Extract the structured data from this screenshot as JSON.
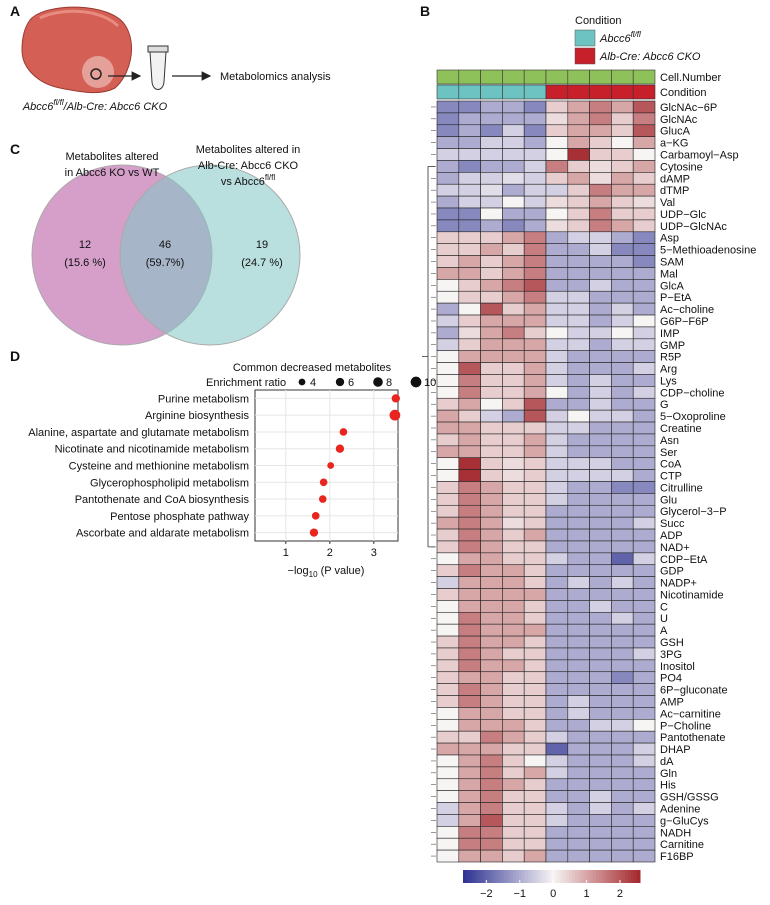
{
  "panel_labels": [
    "A",
    "B",
    "C",
    "D"
  ],
  "panel_a": {
    "step": "Metabolomics analysis",
    "caption": [
      "Abcc6",
      "fl/fl",
      "/Alb-Cre: Abcc6 CKO"
    ]
  },
  "chart_data": [
    {
      "type": "heatmap",
      "legend_title": "Condition",
      "conditions": [
        {
          "name": "Abcc6",
          "superscript": "fl/fl",
          "color": "#6cc3c1"
        },
        {
          "name": "Alb-Cre: Abcc6 CKO",
          "color": "#c8202a"
        }
      ],
      "annotation_rows": [
        "Cell.Number",
        "Condition"
      ],
      "cell_number_color": "#8fc15a",
      "column_condition": [
        0,
        0,
        0,
        0,
        0,
        1,
        1,
        1,
        1,
        1
      ],
      "rows": [
        "GlcNAc−6P",
        "GlcNAc",
        "GlucA",
        "a−KG",
        "Carbamoyl−Asp",
        "Cytosine",
        "dAMP",
        "dTMP",
        "Val",
        "UDP−Glc",
        "UDP−GlcNAc",
        "Asp",
        "5−Methioadenosine",
        "SAM",
        "Mal",
        "GlcA",
        "P−EtA",
        "Ac−choline",
        "G6P−F6P",
        "IMP",
        "GMP",
        "R5P",
        "Arg",
        "Lys",
        "CDP−choline",
        "G",
        "5−Oxoproline",
        "Creatine",
        "Asn",
        "Ser",
        "CoA",
        "CTP",
        "Citrulline",
        "Glu",
        "Glycerol−3−P",
        "Succ",
        "ADP",
        "NAD+",
        "CDP−EtA",
        "GDP",
        "NADP+",
        "Nicotinamide",
        "C",
        "U",
        "A",
        "GSH",
        "3PG",
        "Inositol",
        "PO4",
        "6P−gluconate",
        "AMP",
        "Ac−carnitine",
        "P−Choline",
        "Pantothenate",
        "DHAP",
        "dA",
        "Gln",
        "His",
        "GSH/GSSG",
        "Adenine",
        "g−GluCys",
        "NADH",
        "Carnitine",
        "F16BP"
      ],
      "row_label_colors": [
        "#c0272d",
        "#c0272d",
        "#c0272d",
        "#111",
        "#111",
        "#c0272d",
        "#111",
        "#c0272d",
        "#111",
        "#111",
        "#111",
        "#c0272d",
        "#c0272d",
        "#c0272d",
        "#c0272d",
        "#c0272d",
        "#c0272d",
        "#c0272d",
        "#111",
        "#111",
        "#c0272d",
        "#c0272d",
        "#c0272d",
        "#c0272d",
        "#111",
        "#111",
        "#c0272d",
        "#c0272d",
        "#c0272d",
        "#c0272d",
        "#c0272d",
        "#111",
        "#c0272d",
        "#111",
        "#c0272d",
        "#c0272d",
        "#c0272d",
        "#c0272d",
        "#c0272d",
        "#c0272d",
        "#c0272d",
        "#c0272d",
        "#111",
        "#c0272d",
        "#c0272d",
        "#c0272d",
        "#c0272d",
        "#c0272d",
        "#c0272d",
        "#c0272d",
        "#c0272d",
        "#c0272d",
        "#111",
        "#c0272d",
        "#111",
        "#c0272d",
        "#c0272d",
        "#c0272d",
        "#c0272d",
        "#111",
        "#111",
        "#c0272d",
        "#c0272d",
        "#111"
      ],
      "values": [
        [
          -1.5,
          -1.5,
          -1,
          -1,
          -1.5,
          0.5,
          1,
          1.5,
          1,
          2
        ],
        [
          -1.5,
          -1,
          -1,
          -1,
          -1,
          0.3,
          1,
          1.5,
          0.5,
          1.5
        ],
        [
          -1.5,
          -1,
          -1.5,
          -0.5,
          -1.5,
          0.5,
          1,
          1,
          0.5,
          2
        ],
        [
          -1,
          -1,
          -0.5,
          -0.5,
          -1,
          0,
          1,
          0.5,
          0,
          1
        ],
        [
          -0.5,
          -0.5,
          -0.5,
          -0.5,
          -0.5,
          0,
          2.5,
          0.5,
          0.5,
          0
        ],
        [
          -1,
          -1.5,
          -1,
          -1,
          -0.5,
          1.5,
          0.5,
          0.3,
          0.5,
          1
        ],
        [
          -1,
          -0.5,
          -0.5,
          -0.3,
          -0.5,
          0.5,
          1,
          0.3,
          1,
          0.5
        ],
        [
          -0.5,
          -0.5,
          -0.3,
          -1,
          -0.5,
          -0.5,
          0.5,
          1.5,
          1,
          1
        ],
        [
          -1,
          -0.5,
          -0.5,
          0,
          -0.5,
          0.3,
          0.5,
          1,
          0.5,
          0.3
        ],
        [
          -1.5,
          -1.5,
          0,
          -1,
          -1,
          0,
          0.5,
          1.5,
          0.5,
          0.5
        ],
        [
          -1.5,
          -1.5,
          -1,
          -1.5,
          -1,
          0.3,
          0.5,
          1.5,
          1,
          0.5
        ],
        [
          0.5,
          0.5,
          0.5,
          1,
          1.5,
          -1,
          -0.5,
          -0.5,
          -1,
          -1.5
        ],
        [
          0.5,
          0.5,
          1,
          0.5,
          1.5,
          -1,
          -1,
          -0.5,
          -1.5,
          -1.5
        ],
        [
          0.5,
          1,
          0.5,
          1,
          1.5,
          -1,
          -1,
          -1,
          -1,
          -1.5
        ],
        [
          1,
          1,
          0.5,
          1,
          1.5,
          -1,
          -1,
          -1,
          -1,
          -1
        ],
        [
          0,
          0.5,
          1,
          1.5,
          2,
          -1,
          -1,
          -0.5,
          -1,
          -1
        ],
        [
          0,
          0.5,
          0.5,
          1,
          1.5,
          -0.5,
          -0.5,
          -1,
          -1,
          -1
        ],
        [
          -1,
          0,
          2,
          0.5,
          1,
          -0.5,
          -0.5,
          -1,
          -0.5,
          -1
        ],
        [
          -0.5,
          0.5,
          1,
          1,
          1,
          -0.5,
          -0.5,
          -1,
          -0.5,
          0
        ],
        [
          -1,
          0.3,
          1,
          1.5,
          0.5,
          0,
          -0.5,
          -0.5,
          0,
          -0.5
        ],
        [
          -0.5,
          0.5,
          1,
          1,
          1,
          -0.5,
          -0.5,
          -1,
          -0.5,
          -0.5
        ],
        [
          0,
          1,
          1,
          1,
          1,
          -0.5,
          -1,
          -1,
          -1,
          -1
        ],
        [
          0,
          2,
          0.5,
          0.5,
          1,
          -0.5,
          -1,
          -1,
          -1,
          -0.5
        ],
        [
          0,
          1.5,
          0.5,
          0.5,
          1,
          -0.5,
          -1,
          -0.5,
          -1,
          -1
        ],
        [
          0,
          1.5,
          0.5,
          0.5,
          1,
          0,
          -1,
          -0.5,
          -1,
          -0.5
        ],
        [
          0.5,
          1,
          0,
          0.5,
          2,
          -1,
          -1,
          -0.5,
          -1,
          -1
        ],
        [
          1,
          0.5,
          -0.5,
          -1,
          2,
          -0.5,
          0,
          -0.5,
          -0.5,
          -1
        ],
        [
          1,
          1,
          0.5,
          0.5,
          0.5,
          -0.5,
          -0.5,
          -1,
          -1,
          -1
        ],
        [
          0.5,
          1,
          0.5,
          0.5,
          1,
          -0.5,
          -1,
          -1,
          -1,
          -1
        ],
        [
          1,
          1,
          0.5,
          0.5,
          1,
          -0.5,
          -1,
          -1,
          -1,
          -1
        ],
        [
          0,
          2.5,
          0.5,
          0.3,
          0.5,
          -0.5,
          -0.5,
          -0.5,
          -1,
          -1
        ],
        [
          0,
          2.5,
          0.5,
          0.3,
          0.5,
          -0.5,
          -0.5,
          -0.5,
          -0.5,
          -1
        ],
        [
          0.5,
          1.5,
          1,
          0.5,
          0.5,
          -0.5,
          -1,
          -1,
          -1.5,
          -1.5
        ],
        [
          0.5,
          1.5,
          1,
          0.5,
          0.5,
          -0.5,
          -1,
          -1,
          -1,
          -1
        ],
        [
          0.5,
          1.5,
          1,
          0.5,
          0.5,
          -1,
          -1,
          -1,
          -1,
          -1
        ],
        [
          1,
          1.5,
          1,
          0.3,
          0.5,
          -1,
          -1,
          -1,
          -1,
          -0.5
        ],
        [
          0.5,
          1.5,
          1,
          0.5,
          1,
          -1,
          -1,
          -1,
          -1,
          -1
        ],
        [
          0.5,
          1.5,
          1,
          0.5,
          0.5,
          -1,
          -1,
          -1,
          -1,
          -1
        ],
        [
          0,
          1,
          1,
          0.5,
          0.5,
          -0.5,
          -1,
          -1,
          -2,
          -0.5
        ],
        [
          0.5,
          1.5,
          1,
          1,
          0.5,
          -1,
          -1,
          -1,
          -1,
          -1
        ],
        [
          -0.5,
          1,
          1,
          1,
          0.5,
          -1,
          -0.5,
          -1,
          -0.5,
          -1
        ],
        [
          0.5,
          1,
          1,
          1,
          1,
          -1,
          -1,
          -1,
          -1,
          -1
        ],
        [
          0,
          1,
          1,
          1,
          0.5,
          -1,
          -1,
          -0.5,
          -1,
          -1
        ],
        [
          0,
          1.5,
          1,
          1,
          0.5,
          -1,
          -1,
          -1,
          -0.5,
          -1
        ],
        [
          0,
          1.5,
          1,
          1,
          1,
          -1,
          -1,
          -1,
          -1,
          -1
        ],
        [
          0.5,
          1.5,
          1,
          1,
          0.5,
          -1,
          -1,
          -1,
          -1,
          -1
        ],
        [
          0.5,
          1.5,
          1,
          0.5,
          0.5,
          -1,
          -1,
          -1,
          -1,
          -0.5
        ],
        [
          0.5,
          1.5,
          1,
          1,
          0.5,
          -1,
          -1,
          -1,
          -1,
          -1
        ],
        [
          0.5,
          1,
          1,
          0.5,
          0.5,
          -1,
          -1,
          -1,
          -1.5,
          -1
        ],
        [
          0.5,
          1.5,
          1,
          0.5,
          0.5,
          -1,
          -1,
          -1,
          -1,
          -1
        ],
        [
          0.5,
          1.5,
          1,
          0.5,
          0.5,
          -1,
          -0.5,
          -1,
          -1,
          -1
        ],
        [
          0,
          1,
          1,
          0.5,
          0.5,
          -1,
          -0.5,
          -1,
          -1,
          -1
        ],
        [
          0,
          1,
          1,
          1,
          0.5,
          -1,
          -1,
          -0.5,
          -0.5,
          0
        ],
        [
          0.5,
          0.5,
          1.5,
          1,
          0.5,
          -0.5,
          -1,
          -1,
          -1,
          -1
        ],
        [
          1,
          1,
          1,
          0.5,
          0.5,
          -2,
          -1,
          -1,
          -1,
          -0.5
        ],
        [
          0,
          1,
          1.5,
          0.5,
          0,
          -0.5,
          -1,
          -1,
          -1,
          -0.5
        ],
        [
          0,
          1,
          1.5,
          0.5,
          1,
          -0.5,
          -1,
          -1,
          -1,
          -1
        ],
        [
          0,
          1,
          1.5,
          1,
          0.5,
          -1,
          -1,
          -1,
          -1,
          -1
        ],
        [
          0,
          1,
          1.5,
          0.5,
          0.5,
          -1,
          -1,
          -0.5,
          -1,
          -1
        ],
        [
          -0.5,
          1,
          1.5,
          0.5,
          0.5,
          -0.5,
          -1,
          -0.5,
          -1,
          -0.5
        ],
        [
          -0.5,
          1,
          2,
          0.5,
          0.5,
          -0.5,
          -1,
          -1,
          -1,
          -1
        ],
        [
          0,
          1.5,
          1.5,
          0.5,
          0.5,
          -1,
          -1,
          -1,
          -1,
          -1
        ],
        [
          0,
          1.5,
          1.5,
          0.5,
          0.5,
          -1,
          -1,
          -1,
          -1,
          -1
        ],
        [
          0,
          1,
          1,
          0.5,
          1,
          -1,
          -1,
          -1,
          -1,
          -1
        ]
      ],
      "colorscale": [
        "#2e3192",
        "#f7f4f4",
        "#a3282d"
      ],
      "colorbar_lim": [
        -2.7,
        2.6
      ],
      "colorbar_ticks": [
        {
          "value": -2,
          "label": "−2"
        },
        {
          "value": -1,
          "label": "−1"
        },
        0,
        1,
        2
      ]
    },
    {
      "type": "venn",
      "sets": [
        {
          "lines": [
            "Metabolites altered",
            "in Abcc6 KO vs WT"
          ],
          "color": "#c77fb8"
        },
        {
          "lines": [
            "Metabolites altered in",
            "Alb-Cre: Abcc6 CKO",
            "vs Abcc6"
          ],
          "superscript": "fl/fl",
          "color": "#7fc6c4"
        }
      ],
      "values": [
        12,
        46,
        19
      ],
      "value_labels": [
        "(15.6 %)",
        "(59.7%)",
        "(24.7 %)"
      ]
    },
    {
      "type": "dot",
      "title": "Common decreased metabolites",
      "size_legend_title": "Enrichment ratio",
      "size_legend": [
        4,
        6,
        8,
        10
      ],
      "categories": [
        "Purine metabolism",
        "Arginine biosynthesis",
        "Alanine, aspartate and glutamate metabolism",
        "Nicotinate and nicotinamide metabolism",
        "Cysteine and methionine metabolism",
        "Glycerophospholipid metabolism",
        "Pantothenate and CoA biosynthesis",
        "Pentose phosphate pathway",
        "Ascorbate and aldarate metabolism"
      ],
      "values": [
        3.5,
        3.48,
        2.31,
        2.23,
        2.02,
        1.86,
        1.84,
        1.68,
        1.64
      ],
      "sizes": [
        6,
        10,
        5,
        6,
        4,
        5,
        5,
        5,
        6
      ],
      "color": "#e8261f",
      "xlabel": [
        "−log",
        "10",
        " (P value)"
      ],
      "xlim": [
        0.3,
        3.55
      ],
      "xticks": [
        1,
        2,
        3
      ],
      "grid": true
    }
  ]
}
